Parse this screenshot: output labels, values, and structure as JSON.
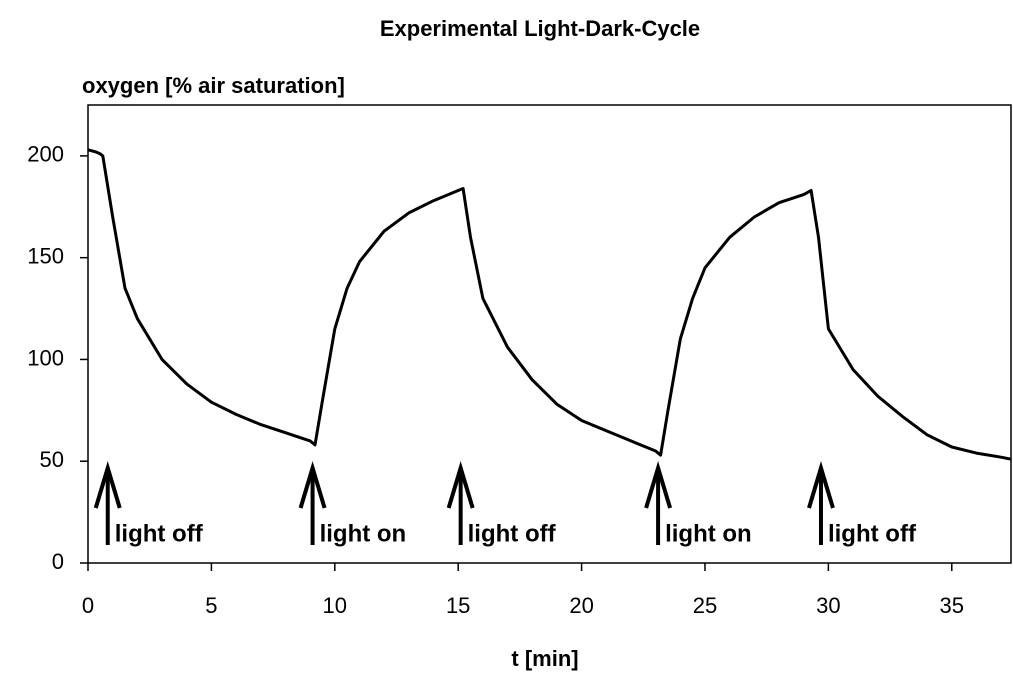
{
  "chart_data": {
    "type": "line",
    "title": "Experimental Light-Dark-Cycle",
    "y_label": "oxygen [% air saturation]",
    "x_label": "t [min]",
    "color": "#000000",
    "x": [
      0,
      0.3,
      0.5,
      0.6,
      1,
      1.5,
      2,
      3,
      4,
      5,
      6,
      7,
      8,
      9,
      9.2,
      9.5,
      10,
      10.5,
      11,
      12,
      13,
      14,
      15,
      15.2,
      15.5,
      16,
      17,
      18,
      19,
      20,
      21,
      22,
      23,
      23.2,
      23.5,
      24,
      24.5,
      25,
      26,
      27,
      28,
      29,
      29.3,
      29.6,
      30,
      31,
      32,
      33,
      34,
      35,
      36,
      37,
      37.4
    ],
    "values": [
      203,
      202,
      201,
      200,
      170,
      135,
      120,
      100,
      88,
      79,
      73,
      68,
      64,
      60,
      58,
      80,
      115,
      135,
      148,
      163,
      172,
      178,
      183,
      184,
      160,
      130,
      106,
      90,
      78,
      70,
      65,
      60,
      55,
      53,
      75,
      110,
      130,
      145,
      160,
      170,
      177,
      181,
      183,
      160,
      115,
      95,
      82,
      72,
      63,
      57,
      54,
      52,
      51
    ],
    "xlim": [
      0,
      37.4
    ],
    "ylim": [
      0,
      225
    ],
    "xticks": [
      0,
      5,
      10,
      15,
      20,
      25,
      30,
      35
    ],
    "yticks": [
      0,
      50,
      100,
      150,
      200
    ],
    "annotations": [
      {
        "x": 0.8,
        "text": "light off"
      },
      {
        "x": 9.1,
        "text": "light on"
      },
      {
        "x": 15.1,
        "text": "light off"
      },
      {
        "x": 23.1,
        "text": "light on"
      },
      {
        "x": 29.7,
        "text": "light off"
      }
    ]
  }
}
